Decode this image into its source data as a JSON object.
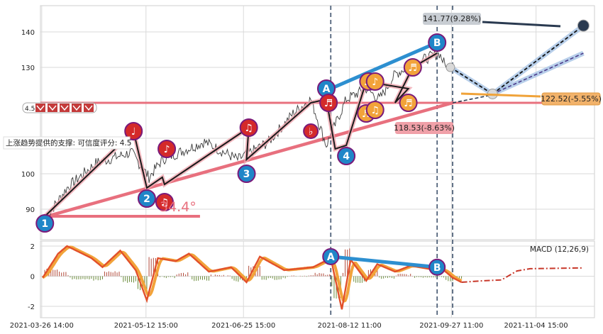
{
  "colors": {
    "price": "#3a3a3a",
    "support": "#e8707e",
    "elliott": "#1a1a1a",
    "wave_badge": "#1f86c8",
    "note_red": "#d42a2a",
    "note_orange": "#f2a33a",
    "forecast_light": "#a7c4e6",
    "forecast_dark": "#2a3a50",
    "macd_line": "#e2502a",
    "macd_signal": "#f2a33a",
    "divergence": "#2d8fd0",
    "vline": "#50627a"
  },
  "chart_data": [
    {
      "type": "line",
      "panel": "price",
      "yticks": [
        90,
        100,
        110,
        120,
        130,
        140
      ],
      "ytick_labels": [
        "90",
        "100",
        "",
        "",
        "130",
        "140"
      ],
      "ylim": [
        85,
        146
      ],
      "xlim": [
        "2021-03-26",
        "2021-12-01"
      ],
      "xticks": [
        "2021-03-26 14:00",
        "2021-05-12 15:00",
        "2021-06-25 15:00",
        "2021-08-12 11:00",
        "2021-09-27 11:00",
        "2021-11-04 15:00"
      ],
      "price_pivots": [
        [
          "2021-03-29",
          88
        ],
        [
          "2021-04-07",
          96
        ],
        [
          "2021-04-20",
          103
        ],
        [
          "2021-05-06",
          106
        ],
        [
          "2021-05-14",
          99
        ],
        [
          "2021-05-20",
          104
        ],
        [
          "2021-06-08",
          109
        ],
        [
          "2021-06-23",
          104
        ],
        [
          "2021-07-07",
          109
        ],
        [
          "2021-07-18",
          117
        ],
        [
          "2021-07-26",
          121
        ],
        [
          "2021-08-02",
          108
        ],
        [
          "2021-08-11",
          121
        ],
        [
          "2021-08-20",
          124
        ],
        [
          "2021-08-26",
          121
        ],
        [
          "2021-09-02",
          128
        ],
        [
          "2021-09-10",
          131
        ],
        [
          "2021-09-22",
          134
        ],
        [
          "2021-09-25",
          130
        ]
      ],
      "waves": [
        {
          "label": "1",
          "date": "2021-03-28",
          "value": 86
        },
        {
          "label": "2",
          "date": "2021-05-13",
          "value": 93
        },
        {
          "label": "3",
          "date": "2021-06-27",
          "value": 100
        },
        {
          "label": "A",
          "date": "2021-08-02",
          "value": 124
        },
        {
          "label": "4",
          "date": "2021-08-11",
          "value": 105
        },
        {
          "label": "B",
          "date": "2021-09-21",
          "value": 137
        }
      ],
      "notes": [
        {
          "kind": "red",
          "glyph": "♩",
          "date": "2021-05-07",
          "value": 112
        },
        {
          "kind": "red",
          "glyph": "♪",
          "date": "2021-05-22",
          "value": 107
        },
        {
          "kind": "red",
          "glyph": "♫",
          "date": "2021-05-21",
          "value": 92
        },
        {
          "kind": "red",
          "glyph": "♫",
          "date": "2021-06-28",
          "value": 113
        },
        {
          "kind": "red",
          "glyph": "♭",
          "date": "2021-07-26",
          "value": 112
        },
        {
          "kind": "red",
          "glyph": "♬",
          "date": "2021-08-03",
          "value": 120
        },
        {
          "kind": "orange",
          "glyph": "♬",
          "date": "2021-08-21",
          "value": 126
        },
        {
          "kind": "orange",
          "glyph": "♪",
          "date": "2021-08-24",
          "value": 126
        },
        {
          "kind": "orange",
          "glyph": "♬",
          "date": "2021-08-20",
          "value": 117
        },
        {
          "kind": "orange",
          "glyph": "♫",
          "date": "2021-08-24",
          "value": 118
        },
        {
          "kind": "orange",
          "glyph": "♬",
          "date": "2021-09-10",
          "value": 130
        },
        {
          "kind": "orange",
          "glyph": "♬",
          "date": "2021-09-08",
          "value": 120
        }
      ],
      "support_line": {
        "start": [
          "2021-03-29",
          88
        ],
        "end": [
          "2021-09-28",
          120
        ],
        "extended": [
          "2021-12-01",
          120
        ]
      },
      "horizontal_line": {
        "value": 120
      },
      "angle_label": "34.4°",
      "vertical_lines": [
        "2021-08-04",
        "2021-09-21",
        "2021-09-28"
      ],
      "forecast": [
        {
          "label": "141.77(9.28%)",
          "value": 141.77,
          "date": "2021-11-26",
          "style": "dark"
        },
        {
          "label": "122.52(-5.55%)",
          "value": 122.52,
          "date": "2021-10-16",
          "style": "orange"
        },
        {
          "label": "118.53(-8.63%)",
          "value": 118.53,
          "date": "2021-09-29",
          "style": "red"
        }
      ],
      "forecast_path": [
        [
          "2021-09-27",
          130
        ],
        [
          "2021-10-16",
          122.5
        ],
        [
          "2021-11-26",
          141.77
        ]
      ],
      "forecast_path2": [
        [
          "2021-10-16",
          122.5
        ],
        [
          "2021-11-26",
          134
        ]
      ],
      "support_text": "上涨趋势提供的支撑: 可信度评分: 4.5",
      "score_badge": "4.5"
    },
    {
      "type": "line",
      "panel": "macd",
      "title": "MACD (12,26,9)",
      "yticks": [
        -2,
        0,
        2
      ],
      "ylim": [
        -2.5,
        2.3
      ],
      "macd_pivots": [
        [
          "2021-03-27",
          -0.1
        ],
        [
          "2021-04-03",
          1.5
        ],
        [
          "2021-04-07",
          2.0
        ],
        [
          "2021-04-18",
          1.2
        ],
        [
          "2021-04-23",
          0.6
        ],
        [
          "2021-05-01",
          1.7
        ],
        [
          "2021-05-08",
          0.4
        ],
        [
          "2021-05-13",
          -1.6
        ],
        [
          "2021-05-18",
          1.2
        ],
        [
          "2021-05-26",
          1.0
        ],
        [
          "2021-06-01",
          1.5
        ],
        [
          "2021-06-10",
          0.3
        ],
        [
          "2021-06-20",
          0.6
        ],
        [
          "2021-06-27",
          -0.4
        ],
        [
          "2021-07-03",
          1.3
        ],
        [
          "2021-07-14",
          0.4
        ],
        [
          "2021-07-27",
          0.6
        ],
        [
          "2021-08-04",
          1.2
        ],
        [
          "2021-08-09",
          -2.2
        ],
        [
          "2021-08-13",
          1.1
        ],
        [
          "2021-08-20",
          -0.3
        ],
        [
          "2021-08-25",
          0.8
        ],
        [
          "2021-09-02",
          0.3
        ],
        [
          "2021-09-09",
          0.7
        ],
        [
          "2021-09-17",
          0.5
        ],
        [
          "2021-09-24",
          0.4
        ],
        [
          "2021-09-28",
          -0.1
        ],
        [
          "2021-10-02",
          -0.4
        ]
      ],
      "macd_forecast": [
        [
          "2021-10-02",
          -0.4
        ],
        [
          "2021-10-12",
          -0.3
        ],
        [
          "2021-10-20",
          -0.25
        ],
        [
          "2021-10-27",
          0.35
        ],
        [
          "2021-11-02",
          0.5
        ],
        [
          "2021-11-26",
          0.55
        ]
      ],
      "divergence": {
        "start": [
          "2021-08-04",
          1.3
        ],
        "end": [
          "2021-09-21",
          0.6
        ],
        "labels": [
          "A",
          "B"
        ]
      }
    }
  ]
}
